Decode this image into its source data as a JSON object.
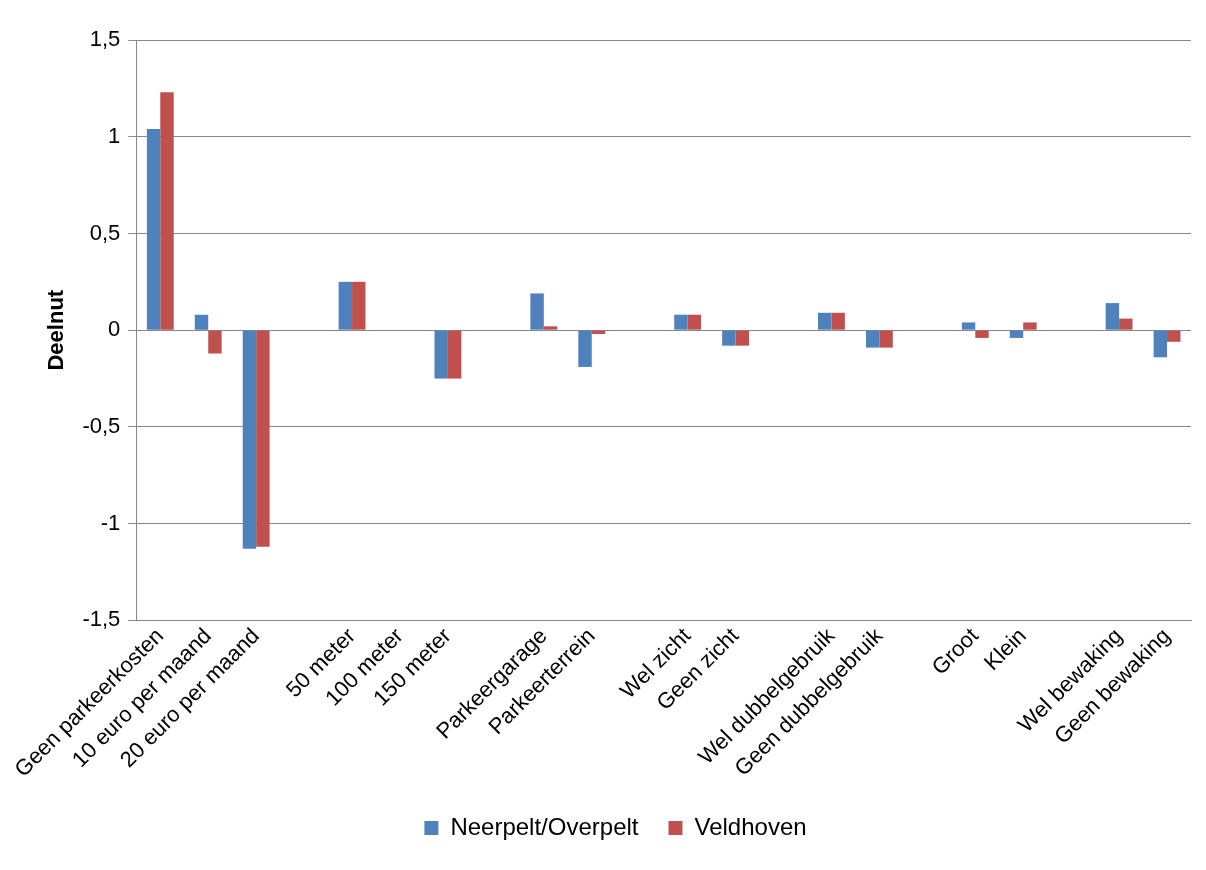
{
  "chart_data": {
    "type": "bar",
    "ylabel": "Deelnut",
    "categories": [
      "Geen parkeerkosten",
      "10 euro per maand",
      "20 euro per maand",
      null,
      "50 meter",
      "100 meter",
      "150 meter",
      null,
      "Parkeergarage",
      "Parkeerterrein",
      null,
      "Wel zicht",
      "Geen zicht",
      null,
      "Wel dubbelgebruik",
      "Geen dubbelgebruik",
      null,
      "Groot",
      "Klein",
      null,
      "Wel bewaking",
      "Geen bewaking"
    ],
    "series": [
      {
        "name": "Neerpelt/Overpelt",
        "color": "#4f81bd",
        "values": [
          1.04,
          0.08,
          -1.13,
          null,
          0.25,
          0,
          -0.25,
          null,
          0.19,
          -0.19,
          null,
          0.08,
          -0.08,
          null,
          0.09,
          -0.09,
          null,
          0.04,
          -0.04,
          null,
          0.14,
          -0.14
        ]
      },
      {
        "name": "Veldhoven",
        "color": "#c0504d",
        "values": [
          1.23,
          -0.12,
          -1.12,
          null,
          0.25,
          0,
          -0.25,
          null,
          0.02,
          -0.02,
          null,
          0.08,
          -0.08,
          null,
          0.09,
          -0.09,
          null,
          -0.04,
          0.04,
          null,
          0.06,
          -0.06
        ]
      }
    ],
    "ylim": [
      -1.5,
      1.5
    ],
    "yticks": [
      {
        "value": -1.5,
        "label": "-1,5"
      },
      {
        "value": -1,
        "label": "-1"
      },
      {
        "value": -0.5,
        "label": "-0,5"
      },
      0,
      {
        "value": 0.5,
        "label": "0,5"
      },
      1,
      {
        "value": 1.5,
        "label": "1,5"
      }
    ],
    "grid": "y",
    "legend": "bottom"
  }
}
